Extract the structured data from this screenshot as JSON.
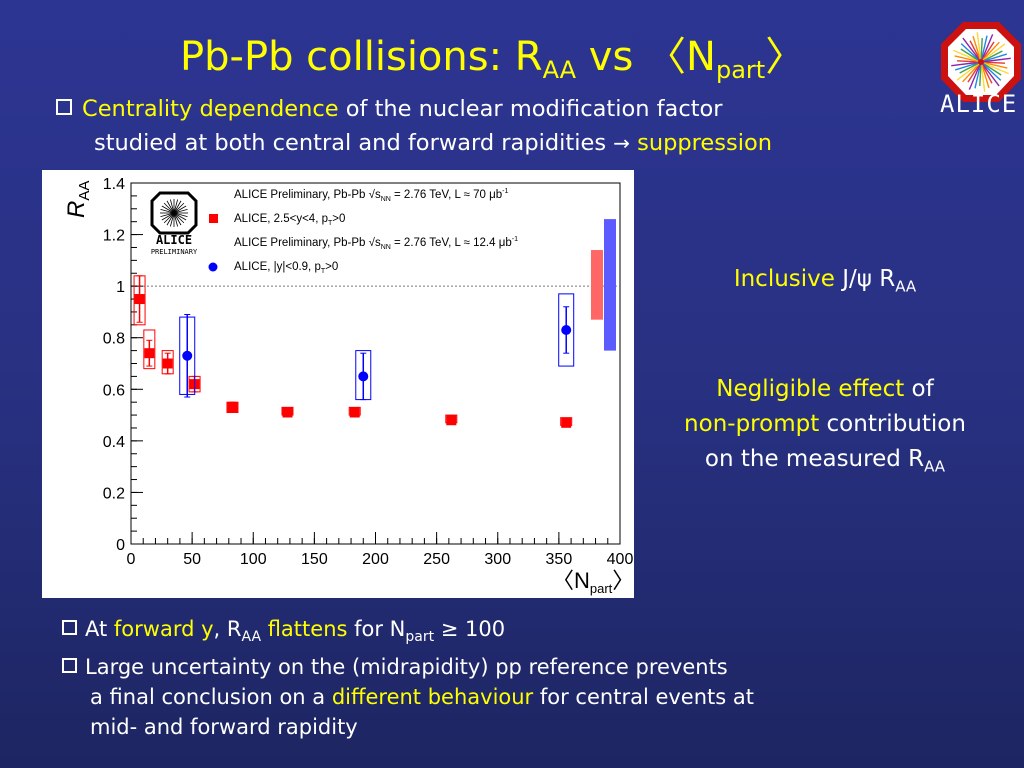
{
  "title": {
    "main": "Pb-Pb collisions: R",
    "sub1": "AA",
    "mid": " vs 〈N",
    "sub2": "part",
    "end": "〉"
  },
  "logo": {
    "text": "ALICE"
  },
  "top_bullet": {
    "highlight": "Centrality dependence",
    "line1_rest": " of the nuclear modification factor",
    "line2": "studied at both central and forward rapidities ",
    "arrow": "→",
    "line2_highlight": "suppression"
  },
  "side_notes": {
    "inclusive_hl": "Inclusive",
    "inclusive_rest": " J/ψ R",
    "inclusive_sub": "AA",
    "negl_hl": "Negligible effect",
    "negl_rest": " of",
    "nonprompt_hl": "non-prompt",
    "nonprompt_rest": " contribution",
    "measured": "on the measured R",
    "measured_sub": "AA"
  },
  "bottom_bullets": {
    "b1_a": "At ",
    "b1_hl1": "forward y",
    "b1_b": ", R",
    "b1_sub": "AA",
    "b1_hl2": " flattens",
    "b1_c": " for N",
    "b1_sub2": "part",
    "b1_d": " ≥ 100",
    "b2_line1": "Large uncertainty on the (midrapidity) pp reference prevents",
    "b2_line2a": "a final conclusion on a ",
    "b2_hl": "different behaviour",
    "b2_line2b": " for central events at",
    "b2_line3": "mid- and forward rapidity"
  },
  "chart_data": {
    "type": "scatter",
    "xlabel": "〈N",
    "xlabel_sub": "part",
    "xlabel_end": "〉",
    "ylabel": "R",
    "ylabel_sub": "AA",
    "xlim": [
      0,
      400
    ],
    "ylim": [
      0,
      1.4
    ],
    "xticks": [
      "0",
      "50",
      "100",
      "150",
      "200",
      "250",
      "300",
      "350",
      "400"
    ],
    "yticks": [
      "0",
      "0.2",
      "0.4",
      "0.6",
      "0.8",
      "1",
      "1.2",
      "1.4"
    ],
    "reference_line": 1,
    "preliminary_logo_text": [
      "ALICE",
      "PRELIMINARY"
    ],
    "legend": [
      {
        "text": "ALICE Preliminary, Pb-Pb   √s",
        "sub": "NN",
        "text2": " = 2.76 TeV, L ≈ 70 μb",
        "sup": "-1"
      },
      {
        "text": "ALICE, 2.5<y<4, p",
        "sub": "T",
        "text2": ">0"
      },
      {
        "text": "ALICE Preliminary, Pb-Pb   √s",
        "sub": "NN",
        "text2": " = 2.76 TeV, L ≈ 12.4 μb",
        "sup": "-1"
      },
      {
        "text": "ALICE, |y|<0.9, p",
        "sub": "T",
        "text2": ">0"
      }
    ],
    "series": [
      {
        "name": "ALICE, 2.5<y<4, pT>0",
        "color": "#ff0000",
        "marker": "square",
        "x": [
          7,
          15,
          30,
          52,
          83,
          128,
          183,
          262,
          356
        ],
        "y": [
          0.95,
          0.74,
          0.7,
          0.62,
          0.53,
          0.51,
          0.51,
          0.48,
          0.47
        ],
        "stat_err": [
          0.09,
          0.05,
          0.04,
          0.03,
          0.02,
          0.01,
          0.01,
          0.01,
          0.01
        ],
        "syst_lo": [
          0.85,
          0.68,
          0.66,
          0.59,
          0.51,
          0.5,
          0.5,
          0.47,
          0.46
        ],
        "syst_hi": [
          1.04,
          0.83,
          0.75,
          0.65,
          0.55,
          0.53,
          0.53,
          0.5,
          0.49
        ]
      },
      {
        "name": "ALICE, |y|<0.9, pT>0",
        "color": "#0000ff",
        "marker": "circle",
        "x": [
          46,
          190,
          356
        ],
        "y": [
          0.73,
          0.65,
          0.83
        ],
        "stat_err": [
          0.16,
          0.09,
          0.09
        ],
        "syst_lo": [
          0.58,
          0.56,
          0.69
        ],
        "syst_hi": [
          0.88,
          0.75,
          0.97
        ]
      }
    ],
    "global_uncertainty": [
      {
        "color": "#ff6666",
        "lo": 0.87,
        "hi": 1.14
      },
      {
        "color": "#5b5bff",
        "lo": 0.75,
        "hi": 1.26
      }
    ]
  }
}
